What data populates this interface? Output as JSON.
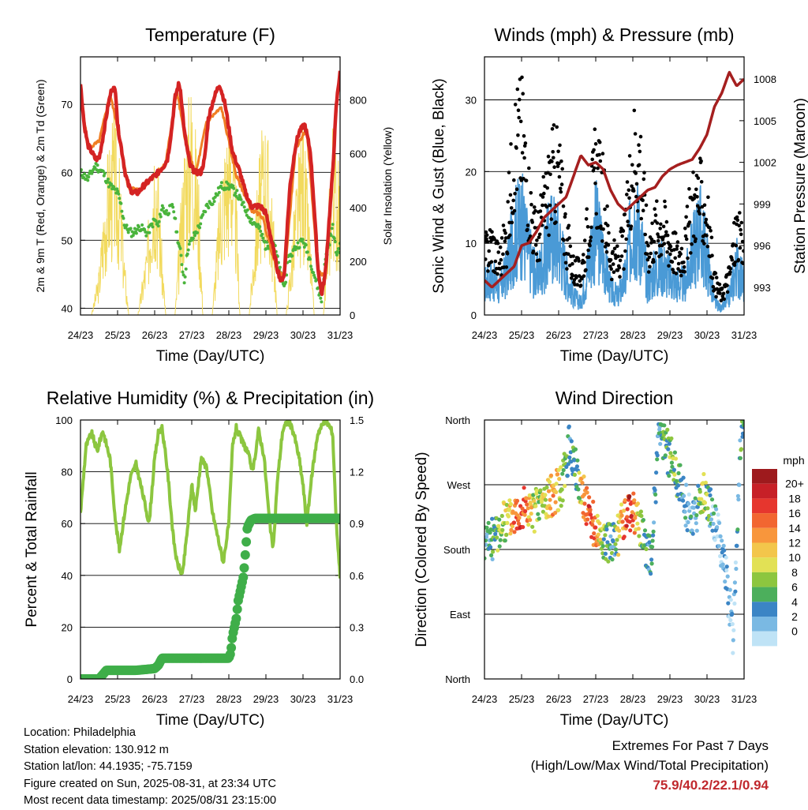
{
  "chart_data": [
    {
      "type": "line",
      "title": "Temperature (F)",
      "xlabel": "Time (Day/UTC)",
      "ylabel": "2m & 9m T (Red, Orange) & 2m Td (Green)",
      "ylabel_right": "Solar Insolation (Yellow)",
      "x_ticks": [
        "24/23",
        "25/23",
        "26/23",
        "27/23",
        "28/23",
        "29/23",
        "30/23",
        "31/23"
      ],
      "ylim": [
        39,
        77
      ],
      "y_ticks": [
        40,
        50,
        60,
        70
      ],
      "ylim_right": [
        0,
        960
      ],
      "y_ticks_right": [
        0,
        200,
        400,
        600,
        800
      ],
      "grid": true,
      "series": [
        {
          "name": "2m T",
          "axis": "left",
          "color": "#d42323",
          "x": [
            0,
            0.1,
            0.2,
            0.4,
            0.5,
            0.6,
            0.75,
            0.85,
            0.95,
            1.0,
            1.15,
            1.2,
            1.3,
            1.4,
            1.55,
            1.7,
            1.9,
            2.1,
            2.25,
            2.35,
            2.45,
            2.55,
            2.65,
            2.7,
            2.8,
            2.95,
            3.1,
            3.25,
            3.35,
            3.45,
            3.6,
            3.75,
            3.9,
            4.1,
            4.3,
            4.45,
            4.6,
            4.7,
            4.85,
            5.0,
            5.15,
            5.3,
            5.4,
            5.5,
            5.55,
            5.65,
            5.8,
            5.9,
            6.05,
            6.2,
            6.3,
            6.4,
            6.5,
            6.6,
            6.8,
            6.9,
            7.0
          ],
          "values": [
            73,
            67,
            64,
            62,
            62,
            65,
            70,
            72.5,
            72,
            67,
            62,
            60,
            58,
            57,
            57,
            58,
            59,
            60,
            61,
            62,
            66,
            71,
            73,
            72,
            66,
            61,
            60,
            60,
            62,
            68,
            71,
            73,
            70,
            63,
            60,
            57,
            55,
            55,
            55,
            54,
            50,
            46,
            44,
            45,
            50,
            58,
            64,
            66,
            67,
            63,
            55,
            46,
            42,
            45,
            60,
            70,
            75
          ]
        },
        {
          "name": "9m T",
          "axis": "left",
          "color": "#f07e24",
          "x": [
            0,
            0.2,
            0.5,
            0.8,
            1.0,
            1.3,
            1.6,
            2.0,
            2.3,
            2.6,
            2.8,
            3.1,
            3.4,
            3.8,
            4.2,
            4.6,
            4.9,
            5.3,
            5.5,
            5.8,
            6.1,
            6.4,
            6.6,
            6.9,
            7.0
          ],
          "values": [
            72.6,
            63.5,
            64.5,
            71.5,
            66.5,
            57.5,
            57.5,
            59.5,
            61.5,
            72,
            65.5,
            59.5,
            67.5,
            69.5,
            59.5,
            54.5,
            53.5,
            45.5,
            44.5,
            63.5,
            66.5,
            45.5,
            44.5,
            69.5,
            74.5
          ]
        },
        {
          "name": "2m Td",
          "axis": "left",
          "color": "#4ab43c",
          "x": [
            0,
            0.2,
            0.4,
            0.6,
            0.8,
            1.0,
            1.1,
            1.2,
            1.4,
            1.6,
            1.8,
            2.0,
            2.1,
            2.2,
            2.3,
            2.5,
            2.6,
            2.7,
            2.8,
            2.9,
            3.0,
            3.2,
            3.4,
            3.6,
            3.8,
            4.0,
            4.2,
            4.4,
            4.6,
            4.8,
            5.0,
            5.2,
            5.4,
            5.5,
            5.6,
            5.8,
            6.0,
            6.2,
            6.35,
            6.5,
            6.6,
            6.8,
            6.9,
            7.0
          ],
          "values": [
            60,
            59,
            61,
            60,
            58,
            57,
            55,
            52,
            51,
            52,
            51,
            53,
            52,
            55,
            54,
            55,
            51,
            48,
            44,
            49,
            50,
            52,
            55,
            56,
            58,
            58,
            57,
            55,
            53,
            52,
            49,
            50,
            45,
            43,
            47,
            49,
            50,
            47,
            44,
            41,
            47,
            52,
            48,
            49
          ]
        },
        {
          "name": "Solar Insolation",
          "axis": "right",
          "color": "#f2da5e",
          "x": [
            0,
            0.3,
            0.5,
            0.7,
            0.9,
            1.05,
            1.2,
            1.3,
            1.55,
            1.8,
            2.0,
            2.1,
            2.2,
            2.3,
            2.55,
            2.8,
            3.0,
            3.2,
            3.3,
            3.55,
            3.8,
            4.05,
            4.2,
            4.3,
            4.55,
            4.8,
            5.0,
            5.2,
            5.3,
            5.55,
            5.8,
            6.0,
            6.2,
            6.3,
            6.55,
            6.8,
            7.0
          ],
          "values": [
            0,
            0,
            180,
            600,
            780,
            600,
            200,
            0,
            0,
            300,
            800,
            600,
            250,
            0,
            0,
            700,
            950,
            500,
            0,
            0,
            600,
            850,
            500,
            0,
            0,
            600,
            800,
            400,
            0,
            0,
            500,
            780,
            300,
            0,
            0,
            800,
            500
          ]
        }
      ]
    },
    {
      "type": "scatter",
      "title": "Winds (mph) & Pressure (mb)",
      "xlabel": "Time (Day/UTC)",
      "ylabel": "Sonic Wind & Gust (Blue, Black)",
      "ylabel_right": "Station Pressure (Maroon)",
      "x_ticks": [
        "24/23",
        "25/23",
        "26/23",
        "27/23",
        "28/23",
        "29/23",
        "30/23",
        "31/23"
      ],
      "ylim": [
        0,
        36
      ],
      "y_ticks": [
        0,
        10,
        20,
        30
      ],
      "ylim_right": [
        991,
        1009.6
      ],
      "y_ticks_right": [
        993,
        996,
        999,
        1002,
        1005,
        1008
      ],
      "grid": true,
      "series": [
        {
          "name": "Sonic Wind",
          "axis": "left",
          "color": "#4a9ad6",
          "x": [
            0,
            0.2,
            0.4,
            0.6,
            0.8,
            1.0,
            1.2,
            1.4,
            1.6,
            1.8,
            2.0,
            2.2,
            2.4,
            2.6,
            2.8,
            3.0,
            3.2,
            3.4,
            3.6,
            3.8,
            4.0,
            4.2,
            4.4,
            4.6,
            4.8,
            5.0,
            5.2,
            5.4,
            5.6,
            5.8,
            6.0,
            6.2,
            6.4,
            6.6,
            6.8,
            7.0
          ],
          "values": [
            5,
            6,
            4,
            7,
            13,
            15,
            10,
            6,
            9,
            13,
            12,
            7,
            3,
            2,
            8,
            14,
            10,
            4,
            3,
            6,
            16,
            13,
            5,
            7,
            8,
            6,
            5,
            5,
            10,
            14,
            9,
            2,
            1,
            3,
            8,
            5
          ]
        },
        {
          "name": "Gust",
          "axis": "left",
          "color": "#000000",
          "x": [
            0,
            0.2,
            0.4,
            0.6,
            0.8,
            1.0,
            1.2,
            1.4,
            1.6,
            1.8,
            2.0,
            2.2,
            2.4,
            2.6,
            2.8,
            3.0,
            3.2,
            3.4,
            3.6,
            3.8,
            4.0,
            4.2,
            4.4,
            4.6,
            4.8,
            5.0,
            5.2,
            5.4,
            5.6,
            5.8,
            6.0,
            6.2,
            6.4,
            6.6,
            6.8,
            7.0
          ],
          "values": [
            9,
            11,
            8,
            12,
            26,
            28,
            18,
            11,
            16,
            21,
            22,
            12,
            7,
            6,
            14,
            22,
            18,
            9,
            8,
            12,
            25,
            24,
            10,
            13,
            14,
            11,
            9,
            10,
            17,
            18,
            15,
            5,
            3,
            6,
            13,
            9
          ]
        },
        {
          "name": "Station Pressure",
          "axis": "right",
          "color": "#a51f1f",
          "x": [
            0,
            0.2,
            0.4,
            0.6,
            0.8,
            1.0,
            1.2,
            1.4,
            1.6,
            1.8,
            2.0,
            2.2,
            2.4,
            2.6,
            2.8,
            3.0,
            3.2,
            3.4,
            3.6,
            3.8,
            4.0,
            4.2,
            4.4,
            4.6,
            4.8,
            5.0,
            5.2,
            5.4,
            5.6,
            5.8,
            6.0,
            6.2,
            6.4,
            6.6,
            6.8,
            7.0
          ],
          "values": [
            993.5,
            993,
            993.5,
            994,
            994.5,
            996,
            996.2,
            997,
            998,
            998.5,
            999,
            999.5,
            1001,
            1002.5,
            1001.8,
            1002,
            1001.5,
            1000,
            999,
            998.5,
            999,
            999.5,
            1000,
            1000.2,
            1001,
            1001.5,
            1001.8,
            1002,
            1002.2,
            1003,
            1004,
            1006,
            1007,
            1008.5,
            1007.5,
            1008
          ]
        }
      ]
    },
    {
      "type": "line",
      "title": "Relative Humidity (%) & Precipitation (in)",
      "xlabel": "Time (Day/UTC)",
      "ylabel": "Percent & Total Rainfall",
      "x_ticks": [
        "24/23",
        "25/23",
        "26/23",
        "27/23",
        "28/23",
        "29/23",
        "30/23",
        "31/23"
      ],
      "ylim": [
        0,
        100
      ],
      "y_ticks": [
        0,
        20,
        40,
        60,
        80,
        100
      ],
      "ylim_right": [
        0,
        1.5
      ],
      "y_ticks_right": [
        "0.0",
        "0.3",
        "0.6",
        "0.9",
        "1.2",
        "1.5"
      ],
      "grid": true,
      "series": [
        {
          "name": "Relative Humidity",
          "axis": "left",
          "color": "#8cc63f",
          "x": [
            0,
            0.15,
            0.3,
            0.45,
            0.6,
            0.8,
            0.95,
            1.05,
            1.2,
            1.35,
            1.5,
            1.7,
            1.85,
            2.0,
            2.1,
            2.2,
            2.35,
            2.5,
            2.6,
            2.75,
            2.9,
            3.0,
            3.1,
            3.25,
            3.4,
            3.55,
            3.7,
            3.85,
            4.0,
            4.1,
            4.2,
            4.35,
            4.5,
            4.65,
            4.8,
            4.95,
            5.1,
            5.2,
            5.3,
            5.45,
            5.6,
            5.75,
            5.9,
            6.0,
            6.1,
            6.25,
            6.4,
            6.6,
            6.7,
            6.8,
            6.9,
            7.0
          ],
          "values": [
            64,
            90,
            95,
            88,
            96,
            85,
            60,
            50,
            65,
            78,
            83,
            70,
            60,
            85,
            95,
            97,
            80,
            55,
            45,
            40,
            60,
            75,
            65,
            85,
            82,
            65,
            55,
            45,
            60,
            90,
            97,
            92,
            88,
            80,
            96,
            86,
            60,
            50,
            75,
            96,
            100,
            95,
            85,
            75,
            60,
            80,
            95,
            100,
            98,
            95,
            60,
            40
          ]
        },
        {
          "name": "Total Rainfall",
          "axis": "right",
          "color": "#3fae49",
          "x": [
            0,
            0.5,
            0.7,
            1.0,
            1.5,
            2.0,
            2.1,
            2.2,
            2.5,
            3.0,
            3.5,
            4.0,
            4.05,
            4.1,
            4.2,
            4.25,
            4.3,
            4.35,
            4.4,
            4.5,
            4.55,
            4.6,
            4.7,
            4.8,
            5.0,
            5.5,
            6.0,
            6.5,
            7.0
          ],
          "values": [
            0,
            0,
            0.05,
            0.05,
            0.05,
            0.06,
            0.08,
            0.12,
            0.12,
            0.12,
            0.12,
            0.12,
            0.15,
            0.25,
            0.35,
            0.45,
            0.5,
            0.55,
            0.6,
            0.88,
            0.9,
            0.92,
            0.93,
            0.93,
            0.93,
            0.93,
            0.93,
            0.93,
            0.93
          ]
        }
      ]
    },
    {
      "type": "scatter",
      "title": "Wind Direction",
      "xlabel": "Time (Day/UTC)",
      "ylabel": "Direction (Colored By Speed)",
      "x_ticks": [
        "24/23",
        "25/23",
        "26/23",
        "27/23",
        "28/23",
        "29/23",
        "30/23",
        "31/23"
      ],
      "y_tick_labels": [
        "North",
        "East",
        "South",
        "West",
        "North"
      ],
      "ylim": [
        0,
        360
      ],
      "grid": true,
      "colorbar": {
        "title": "mph",
        "labels": [
          "20+",
          "18",
          "16",
          "14",
          "12",
          "10",
          "8",
          "6",
          "4",
          "2",
          "0"
        ],
        "colors": [
          "#9e1a1d",
          "#c72027",
          "#e6362e",
          "#f26631",
          "#f8963c",
          "#f3c64b",
          "#e2e155",
          "#8dc63f",
          "#4caf5c",
          "#3b85c5",
          "#7ab9e3",
          "#bfe3f6"
        ]
      },
      "series": [
        {
          "name": "Wind Direction",
          "x": [
            0.1,
            0.3,
            0.5,
            0.7,
            0.9,
            1.1,
            1.3,
            1.5,
            1.7,
            1.9,
            2.1,
            2.3,
            2.5,
            2.7,
            2.9,
            3.1,
            3.3,
            3.5,
            3.7,
            3.9,
            4.1,
            4.3,
            4.5,
            4.7,
            4.9,
            5.1,
            5.3,
            5.5,
            5.7,
            5.9,
            6.1,
            6.3,
            6.5,
            6.7,
            6.9
          ],
          "values": [
            190,
            200,
            215,
            225,
            235,
            240,
            230,
            245,
            250,
            260,
            270,
            330,
            280,
            250,
            220,
            200,
            190,
            185,
            215,
            235,
            225,
            190,
            170,
            340,
            320,
            300,
            265,
            230,
            230,
            260,
            240,
            200,
            150,
            60,
            330
          ],
          "speed": [
            4,
            6,
            8,
            12,
            18,
            16,
            10,
            8,
            12,
            14,
            8,
            4,
            6,
            16,
            18,
            10,
            6,
            4,
            14,
            20,
            12,
            6,
            4,
            4,
            6,
            8,
            4,
            2,
            4,
            10,
            4,
            2,
            2,
            2,
            6
          ]
        }
      ]
    }
  ],
  "info": {
    "location": "Location: Philadelphia",
    "elevation": "Station elevation: 130.912 m",
    "latlon": "Station lat/lon: 44.1935; -75.7159",
    "created": "Figure created on Sun, 2025-08-31, at 23:34 UTC",
    "recent": "Most recent data timestamp: 2025/08/31 23:15:00"
  },
  "extremes": {
    "line1": "Extremes For Past 7 Days",
    "line2": "(High/Low/Max Wind/Total Precipitation)",
    "values": "75.9/40.2/22.1/0.94"
  }
}
